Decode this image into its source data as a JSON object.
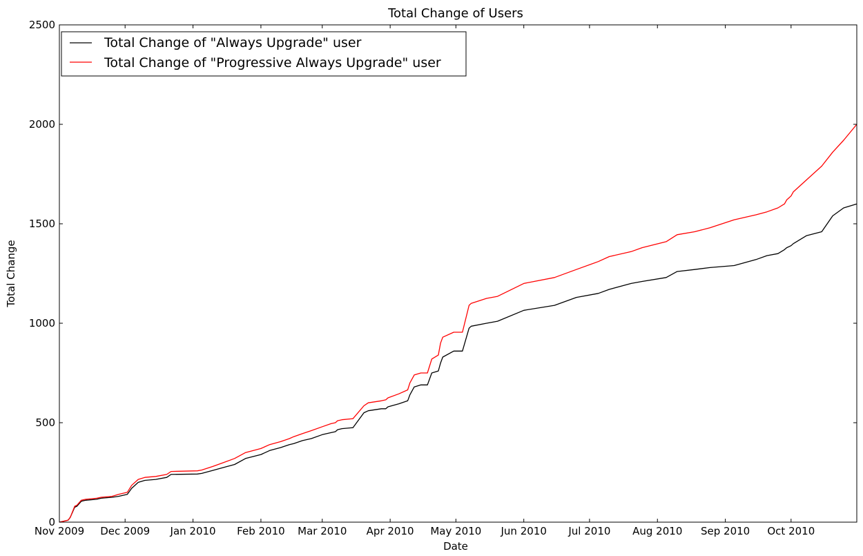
{
  "chart_data": {
    "type": "line",
    "title": "Total Change of Users",
    "xlabel": "Date",
    "ylabel": "Total Change",
    "ylim": [
      0,
      2500
    ],
    "xlim": [
      "2009-11-01",
      "2010-10-31"
    ],
    "grid": false,
    "legend_position": "top-left",
    "x_tick_labels": [
      "Nov 2009",
      "Dec 2009",
      "Jan 2010",
      "Feb 2010",
      "Mar 2010",
      "Apr 2010",
      "May 2010",
      "Jun 2010",
      "Jul 2010",
      "Aug 2010",
      "Sep 2010",
      "Oct 2010"
    ],
    "x_tick_dates": [
      "2009-11-01",
      "2009-12-01",
      "2010-01-01",
      "2010-02-01",
      "2010-03-01",
      "2010-04-01",
      "2010-05-01",
      "2010-06-01",
      "2010-07-01",
      "2010-08-01",
      "2010-09-01",
      "2010-10-01"
    ],
    "y_ticks": [
      0,
      500,
      1000,
      1500,
      2000,
      2500
    ],
    "y_tick_labels": [
      "0",
      "500",
      "1000",
      "1500",
      "2000",
      "2500"
    ],
    "series": [
      {
        "name": "Total Change of \"Always Upgrade\" user",
        "color": "#000000",
        "x": [
          "2009-11-01",
          "2009-11-03",
          "2009-11-05",
          "2009-11-06",
          "2009-11-08",
          "2009-11-09",
          "2009-11-11",
          "2009-11-13",
          "2009-11-18",
          "2009-11-20",
          "2009-11-25",
          "2009-11-28",
          "2009-12-02",
          "2009-12-04",
          "2009-12-07",
          "2009-12-10",
          "2009-12-15",
          "2009-12-20",
          "2009-12-22",
          "2010-01-03",
          "2010-01-05",
          "2010-01-10",
          "2010-01-15",
          "2010-01-20",
          "2010-01-25",
          "2010-02-01",
          "2010-02-05",
          "2010-02-10",
          "2010-02-14",
          "2010-02-16",
          "2010-02-20",
          "2010-02-24",
          "2010-03-01",
          "2010-03-05",
          "2010-03-07",
          "2010-03-08",
          "2010-03-10",
          "2010-03-15",
          "2010-03-20",
          "2010-03-22",
          "2010-03-28",
          "2010-03-30",
          "2010-03-31",
          "2010-04-05",
          "2010-04-09",
          "2010-04-10",
          "2010-04-12",
          "2010-04-15",
          "2010-04-18",
          "2010-04-20",
          "2010-04-23",
          "2010-04-24",
          "2010-04-25",
          "2010-04-30",
          "2010-05-04",
          "2010-05-07",
          "2010-05-08",
          "2010-05-15",
          "2010-05-20",
          "2010-06-01",
          "2010-06-15",
          "2010-06-25",
          "2010-07-05",
          "2010-07-10",
          "2010-07-20",
          "2010-07-25",
          "2010-08-05",
          "2010-08-10",
          "2010-08-18",
          "2010-08-25",
          "2010-09-05",
          "2010-09-15",
          "2010-09-20",
          "2010-09-25",
          "2010-09-28",
          "2010-09-29",
          "2010-10-01",
          "2010-10-02",
          "2010-10-08",
          "2010-10-15",
          "2010-10-20",
          "2010-10-25",
          "2010-10-31"
        ],
        "y": [
          0,
          5,
          10,
          25,
          75,
          80,
          105,
          110,
          115,
          120,
          125,
          130,
          140,
          170,
          200,
          210,
          215,
          225,
          240,
          242,
          245,
          260,
          275,
          290,
          320,
          340,
          360,
          375,
          390,
          395,
          410,
          420,
          440,
          450,
          455,
          465,
          470,
          475,
          550,
          560,
          570,
          570,
          580,
          595,
          610,
          640,
          680,
          690,
          690,
          750,
          760,
          800,
          830,
          860,
          860,
          975,
          985,
          1000,
          1010,
          1065,
          1090,
          1130,
          1150,
          1170,
          1200,
          1210,
          1230,
          1260,
          1270,
          1280,
          1290,
          1320,
          1340,
          1350,
          1370,
          1380,
          1390,
          1400,
          1440,
          1460,
          1540,
          1580,
          1600
        ]
      },
      {
        "name": "Total Change of \"Progressive Always Upgrade\" user",
        "color": "#ff0000",
        "x": [
          "2009-11-01",
          "2009-11-03",
          "2009-11-05",
          "2009-11-06",
          "2009-11-08",
          "2009-11-09",
          "2009-11-11",
          "2009-11-13",
          "2009-11-18",
          "2009-11-20",
          "2009-11-25",
          "2009-11-28",
          "2009-12-02",
          "2009-12-04",
          "2009-12-07",
          "2009-12-10",
          "2009-12-15",
          "2009-12-20",
          "2009-12-22",
          "2010-01-03",
          "2010-01-05",
          "2010-01-10",
          "2010-01-15",
          "2010-01-20",
          "2010-01-25",
          "2010-02-01",
          "2010-02-05",
          "2010-02-10",
          "2010-02-14",
          "2010-02-16",
          "2010-02-20",
          "2010-02-24",
          "2010-03-01",
          "2010-03-05",
          "2010-03-07",
          "2010-03-08",
          "2010-03-10",
          "2010-03-15",
          "2010-03-20",
          "2010-03-22",
          "2010-03-28",
          "2010-03-30",
          "2010-03-31",
          "2010-04-05",
          "2010-04-09",
          "2010-04-10",
          "2010-04-12",
          "2010-04-15",
          "2010-04-18",
          "2010-04-20",
          "2010-04-23",
          "2010-04-24",
          "2010-04-25",
          "2010-04-30",
          "2010-05-04",
          "2010-05-07",
          "2010-05-08",
          "2010-05-15",
          "2010-05-20",
          "2010-06-01",
          "2010-06-15",
          "2010-06-25",
          "2010-07-05",
          "2010-07-10",
          "2010-07-20",
          "2010-07-25",
          "2010-08-05",
          "2010-08-10",
          "2010-08-18",
          "2010-08-25",
          "2010-09-05",
          "2010-09-15",
          "2010-09-20",
          "2010-09-25",
          "2010-09-28",
          "2010-09-29",
          "2010-10-01",
          "2010-10-02",
          "2010-10-08",
          "2010-10-15",
          "2010-10-20",
          "2010-10-25",
          "2010-10-31"
        ],
        "y": [
          0,
          5,
          10,
          25,
          80,
          85,
          110,
          115,
          120,
          125,
          130,
          140,
          150,
          185,
          215,
          225,
          230,
          240,
          255,
          258,
          262,
          280,
          300,
          320,
          350,
          370,
          390,
          405,
          420,
          430,
          445,
          460,
          480,
          495,
          500,
          510,
          515,
          520,
          585,
          600,
          610,
          615,
          625,
          645,
          665,
          700,
          740,
          750,
          750,
          820,
          840,
          900,
          930,
          955,
          955,
          1090,
          1100,
          1125,
          1135,
          1200,
          1230,
          1270,
          1310,
          1335,
          1360,
          1380,
          1410,
          1445,
          1460,
          1480,
          1520,
          1545,
          1560,
          1580,
          1600,
          1620,
          1640,
          1660,
          1720,
          1790,
          1860,
          1920,
          2000
        ]
      }
    ]
  }
}
